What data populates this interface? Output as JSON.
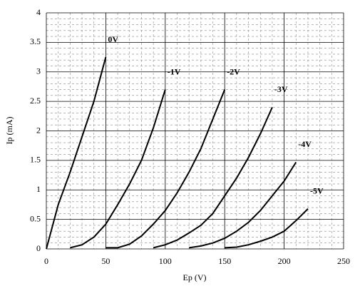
{
  "chart_data": {
    "type": "line",
    "x_label": "Ep (V)",
    "y_label": "Ip (mA)",
    "xlim": [
      0,
      250
    ],
    "xticks": [
      0,
      50,
      100,
      150,
      200,
      250
    ],
    "ylim": [
      0,
      4
    ],
    "yticks": [
      0,
      0.5,
      1,
      1.5,
      2,
      2.5,
      3,
      3.5,
      4
    ],
    "grid": true,
    "minor_divisions": 5,
    "series": [
      {
        "name": "0V",
        "color": "#000000",
        "x": [
          0,
          10,
          20,
          30,
          40,
          50
        ],
        "values": [
          0,
          0.75,
          1.3,
          1.9,
          2.5,
          3.25
        ]
      },
      {
        "name": "-1V",
        "color": "#000000",
        "x": [
          20,
          30,
          40,
          50,
          60,
          70,
          80,
          90,
          100
        ],
        "values": [
          0.02,
          0.07,
          0.2,
          0.42,
          0.75,
          1.1,
          1.5,
          2.05,
          2.7
        ]
      },
      {
        "name": "-2V",
        "color": "#000000",
        "x": [
          50,
          60,
          70,
          80,
          90,
          100,
          110,
          120,
          130,
          140,
          150
        ],
        "values": [
          0.02,
          0.02,
          0.08,
          0.22,
          0.42,
          0.65,
          0.95,
          1.3,
          1.7,
          2.2,
          2.7
        ]
      },
      {
        "name": "-3V",
        "color": "#000000",
        "x": [
          90,
          100,
          110,
          120,
          130,
          140,
          150,
          160,
          170,
          180,
          190
        ],
        "values": [
          0.02,
          0.07,
          0.15,
          0.27,
          0.4,
          0.6,
          0.9,
          1.2,
          1.55,
          1.95,
          2.4
        ]
      },
      {
        "name": "-4V",
        "color": "#000000",
        "x": [
          120,
          130,
          140,
          150,
          160,
          170,
          180,
          190,
          200,
          210
        ],
        "values": [
          0.02,
          0.05,
          0.1,
          0.18,
          0.3,
          0.45,
          0.65,
          0.9,
          1.15,
          1.47
        ]
      },
      {
        "name": "-5V",
        "color": "#000000",
        "x": [
          150,
          160,
          170,
          180,
          190,
          200,
          210,
          220
        ],
        "values": [
          0.02,
          0.03,
          0.07,
          0.13,
          0.2,
          0.3,
          0.48,
          0.68
        ]
      }
    ]
  }
}
